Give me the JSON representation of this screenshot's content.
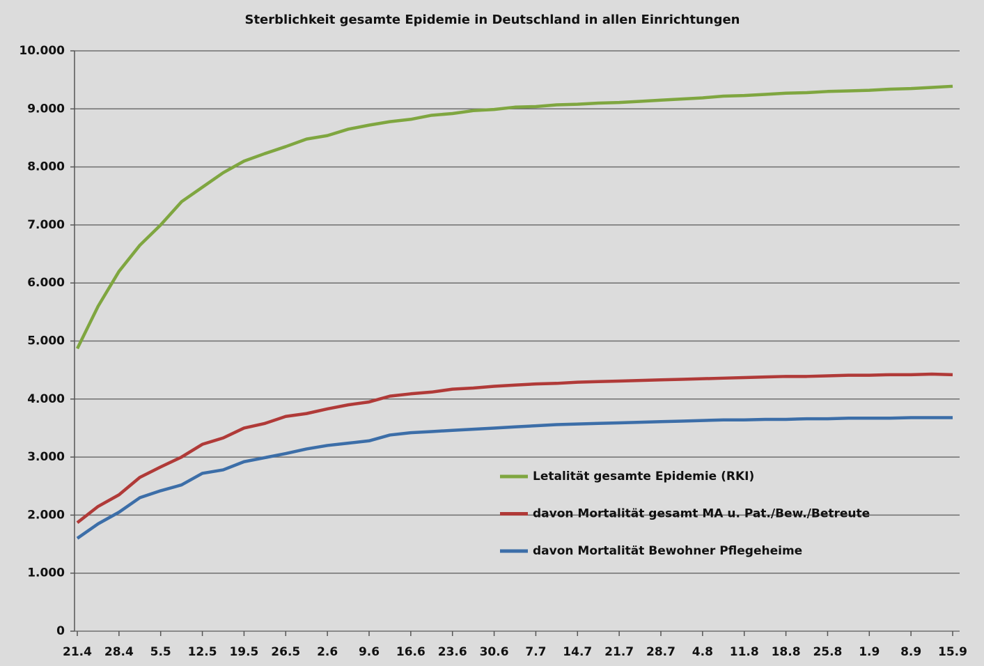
{
  "chart_data": {
    "type": "line",
    "title": "Sterblichkeit gesamte Epidemie in Deutschland in allen Einrichtungen",
    "categories": [
      "21.4",
      null,
      "28.4",
      null,
      "5.5",
      null,
      "12.5",
      null,
      "19.5",
      null,
      "26.5",
      null,
      "2.6",
      null,
      "9.6",
      null,
      "16.6",
      null,
      "23.6",
      null,
      "30.6",
      null,
      "7.7",
      null,
      "14.7",
      null,
      "21.7",
      null,
      "28.7",
      null,
      "4.8",
      null,
      "11.8",
      null,
      "18.8",
      null,
      "25.8",
      null,
      "1.9",
      null,
      "8.9",
      null,
      "15.9"
    ],
    "series": [
      {
        "name": "Letalität gesamte Epidemie (RKI)",
        "color": "#7fa640",
        "values": [
          4870,
          5600,
          6200,
          6650,
          7000,
          7400,
          7650,
          7900,
          8100,
          8230,
          8350,
          8480,
          8540,
          8650,
          8720,
          8780,
          8820,
          8890,
          8920,
          8970,
          8990,
          9030,
          9040,
          9070,
          9080,
          9100,
          9110,
          9130,
          9150,
          9170,
          9190,
          9220,
          9230,
          9250,
          9270,
          9280,
          9300,
          9310,
          9320,
          9340,
          9350,
          9370,
          9390
        ]
      },
      {
        "name": "davon Mortalität gesamt MA u. Pat./Bew./Betreute",
        "color": "#b03a38",
        "values": [
          1870,
          2150,
          2350,
          2650,
          2830,
          3000,
          3220,
          3330,
          3500,
          3580,
          3700,
          3750,
          3830,
          3900,
          3950,
          4050,
          4090,
          4120,
          4170,
          4190,
          4220,
          4240,
          4260,
          4270,
          4290,
          4300,
          4310,
          4320,
          4330,
          4340,
          4350,
          4360,
          4370,
          4380,
          4390,
          4390,
          4400,
          4410,
          4410,
          4420,
          4420,
          4430,
          4420
        ]
      },
      {
        "name": "davon Mortalität Bewohner Pflegeheime",
        "color": "#3c6ea8",
        "values": [
          1600,
          1850,
          2050,
          2300,
          2420,
          2520,
          2720,
          2780,
          2920,
          2990,
          3060,
          3140,
          3200,
          3240,
          3280,
          3380,
          3420,
          3440,
          3460,
          3480,
          3500,
          3520,
          3540,
          3560,
          3570,
          3580,
          3590,
          3600,
          3610,
          3620,
          3630,
          3640,
          3640,
          3650,
          3650,
          3660,
          3660,
          3670,
          3670,
          3670,
          3680,
          3680,
          3680
        ]
      }
    ],
    "ylim": [
      0,
      10000
    ],
    "yticks": [
      0,
      {
        "value": 1000,
        "label": "1.000"
      },
      {
        "value": 2000,
        "label": "2.000"
      },
      {
        "value": 3000,
        "label": "3.000"
      },
      {
        "value": 4000,
        "label": "4.000"
      },
      {
        "value": 5000,
        "label": "5.000"
      },
      {
        "value": 6000,
        "label": "6.000"
      },
      {
        "value": 7000,
        "label": "7.000"
      },
      {
        "value": 8000,
        "label": "8.000"
      },
      {
        "value": 9000,
        "label": "9.000"
      },
      {
        "value": 10000,
        "label": "10.000"
      }
    ],
    "grid": true
  }
}
